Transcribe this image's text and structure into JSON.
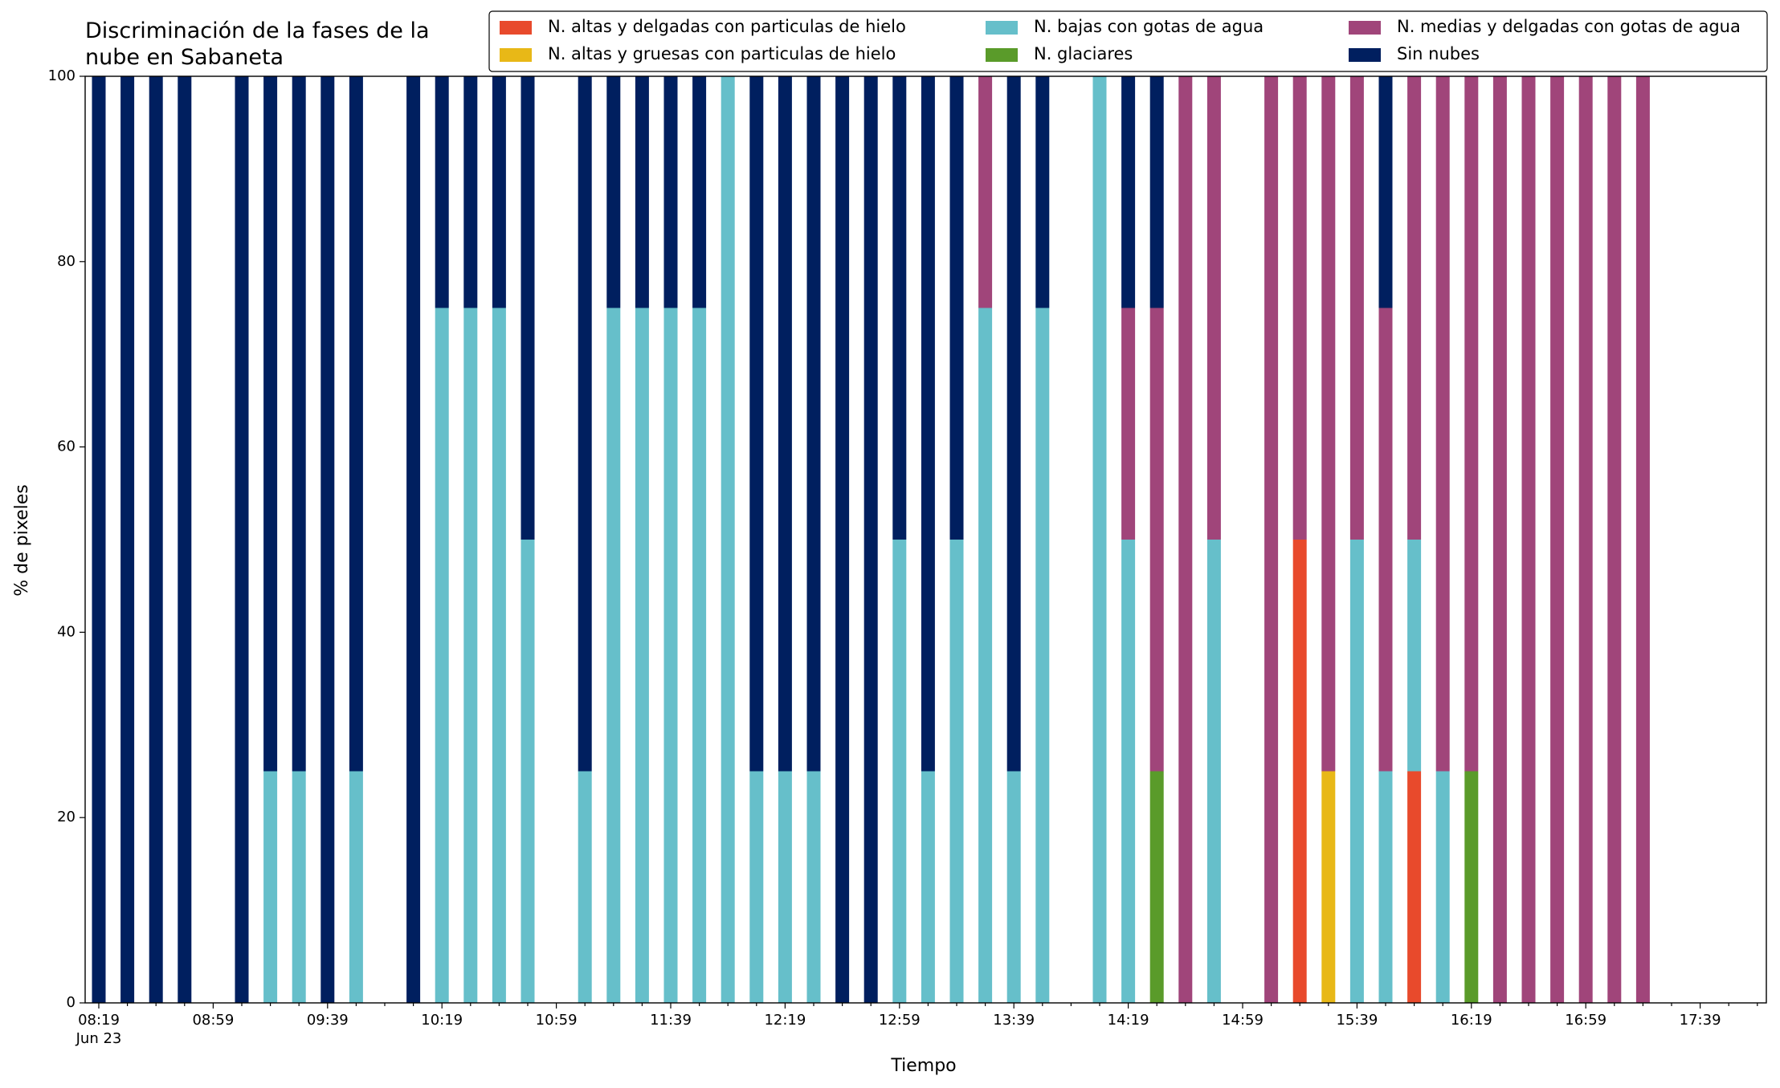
{
  "chart_data": {
    "type": "stacked_bar",
    "title": "Discriminación de la fases de la\nnube en Sabaneta",
    "xlabel": "Tiempo",
    "ylabel": "% de pixeles",
    "x_date": "Jun 23",
    "categories": [
      "08:19",
      null,
      null,
      null,
      "08:59",
      null,
      null,
      null,
      "09:39",
      null,
      null,
      null,
      "10:19",
      null,
      null,
      null,
      "10:59",
      null,
      null,
      null,
      "11:39",
      null,
      null,
      null,
      "12:19",
      null,
      null,
      null,
      "12:59",
      null,
      null,
      null,
      "13:39",
      null,
      null,
      null,
      "14:19",
      null,
      null,
      null,
      "14:59",
      null,
      null,
      null,
      "15:39",
      null,
      null,
      null,
      "16:19",
      null,
      null,
      null,
      "16:59",
      null,
      null,
      null,
      "17:39",
      null,
      null
    ],
    "ylim": [
      0,
      100
    ],
    "yticks": [
      0,
      20,
      40,
      60,
      80,
      100
    ],
    "grid": false,
    "legend": "top-right",
    "series": [
      {
        "name": "N. altas y delgadas con particulas de hielo",
        "color": "#e84a2c",
        "values": [
          0,
          0,
          0,
          0,
          0,
          0,
          0,
          0,
          0,
          0,
          0,
          0,
          0,
          0,
          0,
          0,
          0,
          0,
          0,
          0,
          0,
          0,
          0,
          0,
          0,
          0,
          0,
          0,
          0,
          0,
          0,
          0,
          0,
          0,
          0,
          0,
          0,
          0,
          0,
          0,
          0,
          0,
          50,
          0,
          0,
          0,
          25,
          0,
          0,
          0,
          0,
          0,
          0,
          0,
          0,
          0,
          0,
          0,
          0
        ]
      },
      {
        "name": "N. altas y gruesas con particulas de hielo",
        "color": "#e8b817",
        "values": [
          0,
          0,
          0,
          0,
          0,
          0,
          0,
          0,
          0,
          0,
          0,
          0,
          0,
          0,
          0,
          0,
          0,
          0,
          0,
          0,
          0,
          0,
          0,
          0,
          0,
          0,
          0,
          0,
          0,
          0,
          0,
          0,
          0,
          0,
          0,
          0,
          0,
          0,
          0,
          0,
          0,
          0,
          0,
          25,
          0,
          0,
          0,
          0,
          0,
          0,
          0,
          0,
          0,
          0,
          0,
          0,
          0,
          0,
          0
        ]
      },
      {
        "name": "N. bajas con gotas de agua",
        "color": "#66bfca",
        "values": [
          0,
          0,
          0,
          0,
          0,
          0,
          25,
          25,
          0,
          25,
          0,
          0,
          75,
          75,
          75,
          50,
          0,
          25,
          75,
          75,
          75,
          75,
          100,
          25,
          25,
          25,
          0,
          0,
          50,
          25,
          50,
          75,
          25,
          75,
          0,
          100,
          50,
          0,
          0,
          50,
          0,
          0,
          0,
          0,
          50,
          25,
          25,
          25,
          0,
          0,
          0,
          0,
          0,
          0,
          0,
          0,
          0,
          0,
          0
        ]
      },
      {
        "name": "N. glaciares",
        "color": "#5a9b2a",
        "values": [
          0,
          0,
          0,
          0,
          0,
          0,
          0,
          0,
          0,
          0,
          0,
          0,
          0,
          0,
          0,
          0,
          0,
          0,
          0,
          0,
          0,
          0,
          0,
          0,
          0,
          0,
          0,
          0,
          0,
          0,
          0,
          0,
          0,
          0,
          0,
          0,
          0,
          25,
          0,
          0,
          0,
          0,
          0,
          0,
          0,
          0,
          0,
          0,
          25,
          0,
          0,
          0,
          0,
          0,
          0,
          0,
          0,
          0,
          0
        ]
      },
      {
        "name": "N. medias y delgadas con gotas de agua",
        "color": "#a0457a",
        "values": [
          0,
          0,
          0,
          0,
          0,
          0,
          0,
          0,
          0,
          0,
          0,
          0,
          0,
          0,
          0,
          0,
          0,
          0,
          0,
          0,
          0,
          0,
          0,
          0,
          0,
          0,
          0,
          0,
          0,
          0,
          0,
          25,
          0,
          0,
          0,
          0,
          25,
          50,
          100,
          50,
          0,
          100,
          50,
          75,
          50,
          50,
          50,
          75,
          75,
          100,
          100,
          100,
          100,
          100,
          100,
          0,
          0,
          0,
          0
        ]
      },
      {
        "name": "Sin nubes",
        "color": "#001f5f",
        "values": [
          100,
          100,
          100,
          100,
          0,
          100,
          75,
          75,
          100,
          75,
          0,
          100,
          25,
          25,
          25,
          50,
          0,
          75,
          25,
          25,
          25,
          25,
          0,
          75,
          75,
          75,
          100,
          100,
          50,
          75,
          50,
          0,
          75,
          25,
          0,
          0,
          25,
          25,
          0,
          0,
          0,
          0,
          0,
          0,
          0,
          25,
          0,
          0,
          0,
          0,
          0,
          0,
          0,
          0,
          0,
          0,
          0,
          0,
          0
        ]
      }
    ]
  }
}
